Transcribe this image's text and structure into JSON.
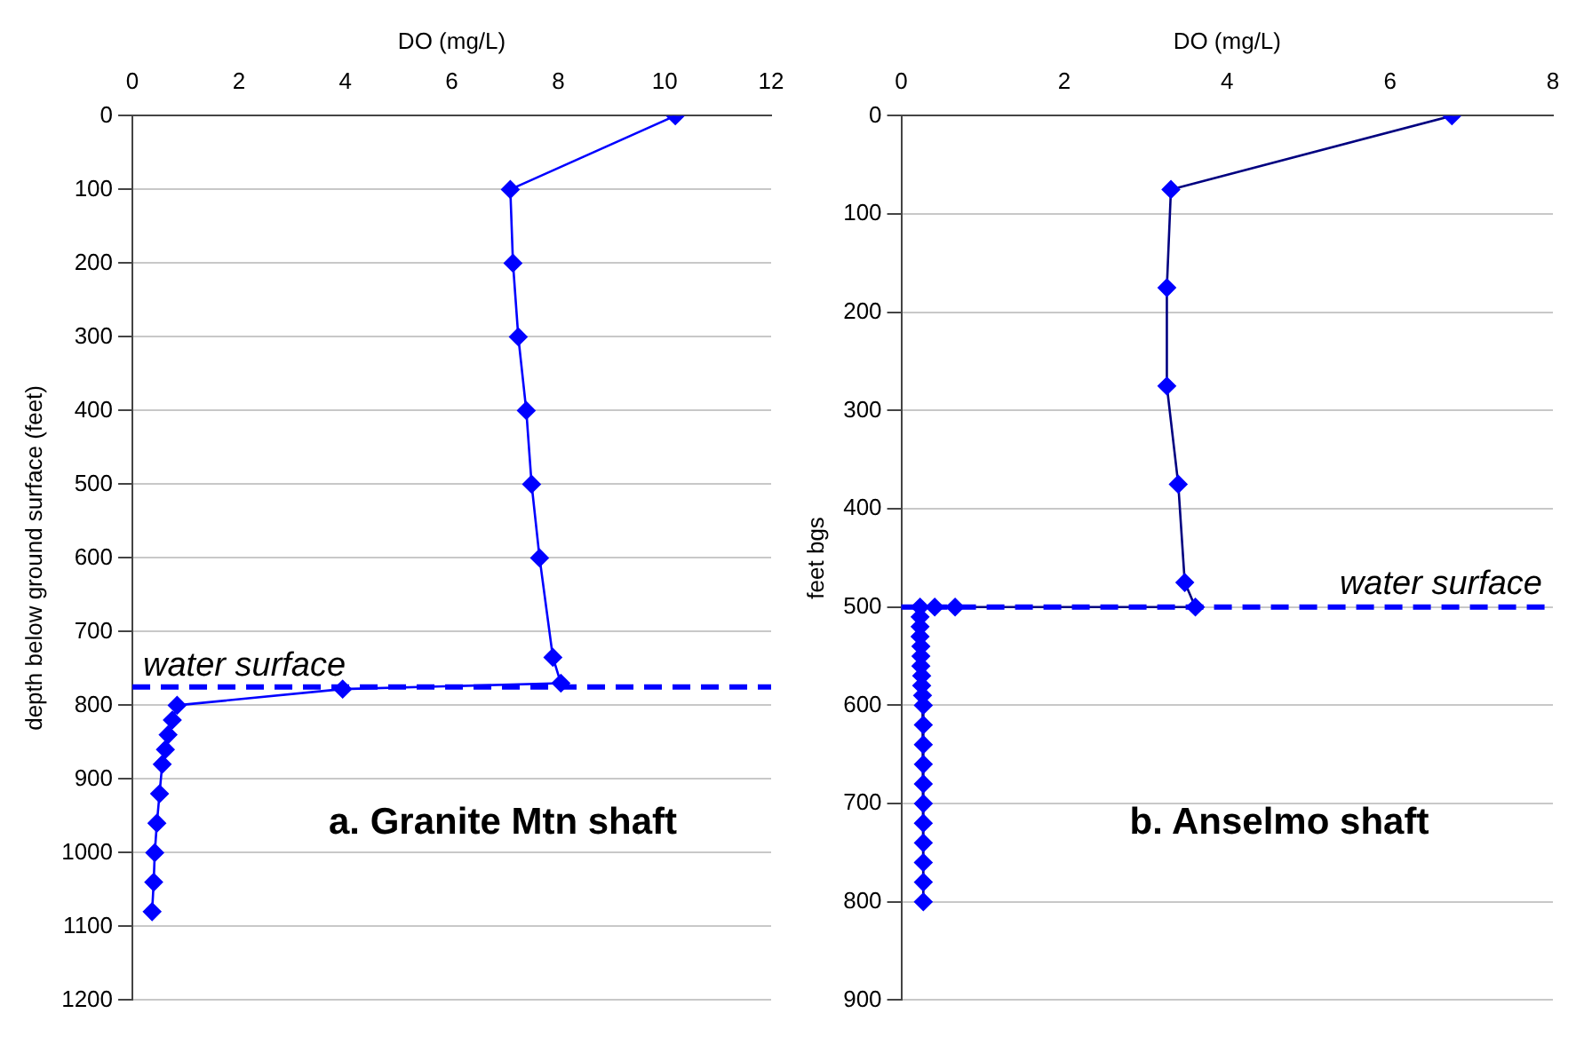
{
  "chart_data": [
    {
      "type": "line",
      "xlabel": "DO (mg/L)",
      "ylabel": "depth below ground surface (feet)",
      "xlim": [
        0,
        12
      ],
      "xticks": [
        0,
        2,
        4,
        6,
        8,
        10,
        12
      ],
      "ylim": [
        1200,
        0
      ],
      "yticks": [
        0,
        100,
        200,
        300,
        400,
        500,
        600,
        700,
        800,
        900,
        1000,
        1100,
        1200
      ],
      "grid": "y",
      "legend": false,
      "marker": "diamond",
      "line_style": "solid",
      "series": [
        {
          "color": "#0000ff",
          "x": [
            10.2,
            7.1,
            7.15,
            7.25,
            7.4,
            7.5,
            7.65,
            7.9,
            8.05,
            3.95,
            0.84,
            0.75,
            0.67,
            0.62,
            0.56,
            0.51,
            0.46,
            0.42,
            0.4,
            0.37
          ],
          "values": [
            0,
            100,
            200,
            300,
            400,
            500,
            600,
            735,
            770,
            778,
            800,
            820,
            840,
            860,
            880,
            920,
            960,
            1000,
            1040,
            1080
          ]
        }
      ],
      "ref_lines": [
        {
          "axis": "y",
          "value": 775,
          "label": "water surface",
          "color": "#0000ff",
          "line_style": "dashed"
        }
      ],
      "annotations": [
        "a. Granite Mtn shaft"
      ]
    },
    {
      "type": "line",
      "xlabel": "DO (mg/L)",
      "ylabel": "feet bgs",
      "xlim": [
        0,
        8
      ],
      "xticks": [
        0,
        2,
        4,
        6,
        8
      ],
      "ylim": [
        900,
        0
      ],
      "yticks": [
        0,
        100,
        200,
        300,
        400,
        500,
        600,
        700,
        800,
        900
      ],
      "grid": "y",
      "legend": false,
      "marker": "diamond",
      "line_style": "solid",
      "series": [
        {
          "color": "#000080",
          "x": [
            6.76,
            3.31,
            3.26,
            3.26,
            3.4,
            3.48,
            3.61,
            0.66,
            0.41,
            0.23,
            0.23,
            0.23,
            0.23,
            0.24,
            0.24,
            0.24,
            0.25,
            0.25,
            0.26,
            0.27,
            0.27,
            0.27,
            0.27,
            0.27,
            0.27,
            0.27,
            0.27,
            0.27,
            0.27,
            0.27
          ],
          "values": [
            0,
            75,
            175,
            275,
            375,
            475,
            500,
            500,
            500,
            500,
            510,
            520,
            530,
            540,
            550,
            560,
            570,
            580,
            590,
            600,
            620,
            640,
            660,
            680,
            700,
            720,
            740,
            760,
            780,
            800
          ]
        }
      ],
      "ref_lines": [
        {
          "axis": "y",
          "value": 500,
          "label": "water surface",
          "color": "#0000ff",
          "line_style": "dashed"
        }
      ],
      "annotations": [
        "b. Anselmo shaft"
      ]
    }
  ]
}
